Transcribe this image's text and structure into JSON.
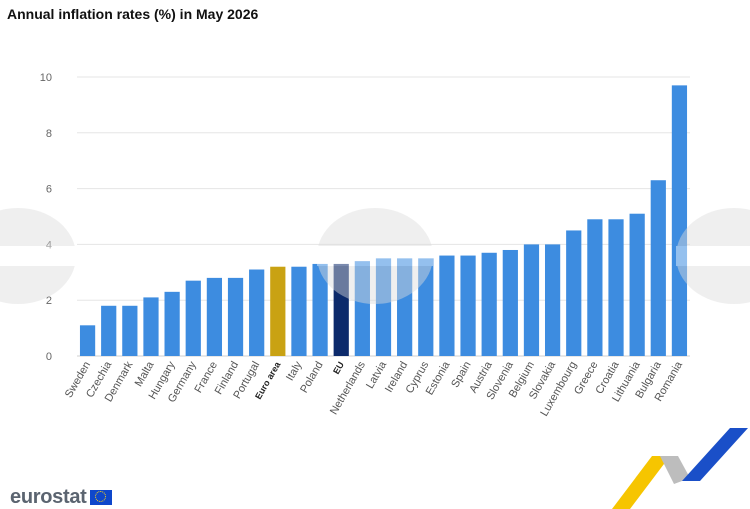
{
  "header": {
    "title": "Annual inflation rates (%) in May 2026"
  },
  "branding": {
    "logo_text": "eurostat"
  },
  "colors": {
    "default": "#3d8ce0",
    "euro_area": "#c9a213",
    "eu": "#0c2a6b",
    "grid": "#e5e5e5",
    "axis": "#cfcfcf"
  },
  "chart_data": {
    "type": "bar",
    "title": "Annual inflation rates (%) in May 2026",
    "xlabel": "",
    "ylabel": "",
    "ylim": [
      0,
      10
    ],
    "yticks": [
      0,
      2,
      4,
      6,
      8,
      10
    ],
    "grid": true,
    "categories": [
      "Sweden",
      "Czechia",
      "Denmark",
      "Malta",
      "Hungary",
      "Germany",
      "France",
      "Finland",
      "Portugal",
      "Euro area",
      "Italy",
      "Poland",
      "EU",
      "Netherlands",
      "Latvia",
      "Ireland",
      "Cyprus",
      "Estonia",
      "Spain",
      "Austria",
      "Slovenia",
      "Belgium",
      "Slovakia",
      "Luxembourg",
      "Greece",
      "Croatia",
      "Lithuania",
      "Bulgaria",
      "Romania"
    ],
    "values": [
      1.1,
      1.8,
      1.8,
      2.1,
      2.3,
      2.7,
      2.8,
      2.8,
      3.1,
      3.2,
      3.2,
      3.3,
      3.3,
      3.4,
      3.5,
      3.5,
      3.5,
      3.6,
      3.6,
      3.7,
      3.8,
      4.0,
      4.0,
      4.5,
      4.9,
      4.9,
      5.1,
      6.3,
      9.7
    ],
    "highlights": {
      "Euro area": "euro_area",
      "EU": "eu"
    }
  }
}
